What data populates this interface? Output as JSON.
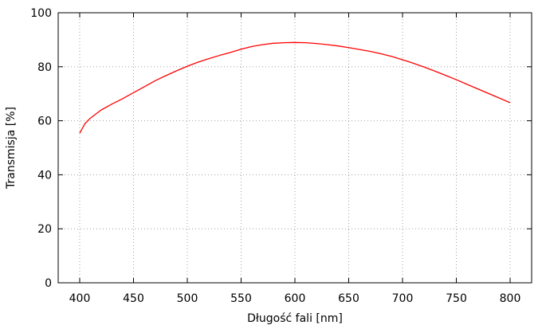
{
  "chart_data": {
    "type": "line",
    "title": "",
    "xlabel": "Długość fali [nm]",
    "ylabel": "Transmisja [%]",
    "xlim": [
      380,
      820
    ],
    "ylim": [
      0,
      100
    ],
    "xticks": [
      400,
      450,
      500,
      550,
      600,
      650,
      700,
      750,
      800
    ],
    "yticks": [
      0,
      20,
      40,
      60,
      80,
      100
    ],
    "grid": true,
    "legend": "none",
    "series": [
      {
        "color": "#ff0000",
        "x": [
          400,
          405,
          410,
          420,
          430,
          440,
          450,
          460,
          470,
          480,
          490,
          500,
          510,
          520,
          530,
          540,
          550,
          560,
          570,
          580,
          590,
          600,
          610,
          620,
          630,
          640,
          650,
          660,
          670,
          680,
          690,
          700,
          710,
          720,
          730,
          740,
          750,
          760,
          770,
          780,
          790,
          800
        ],
        "y": [
          55.4,
          59.0,
          61.0,
          64.0,
          66.2,
          68.2,
          70.4,
          72.6,
          74.8,
          76.7,
          78.5,
          80.2,
          81.7,
          83.0,
          84.2,
          85.3,
          86.5,
          87.5,
          88.2,
          88.7,
          88.9,
          89.0,
          88.9,
          88.6,
          88.2,
          87.7,
          87.1,
          86.4,
          85.7,
          84.8,
          83.8,
          82.6,
          81.3,
          79.9,
          78.4,
          76.8,
          75.2,
          73.5,
          71.8,
          70.1,
          68.4,
          66.7
        ]
      }
    ]
  }
}
